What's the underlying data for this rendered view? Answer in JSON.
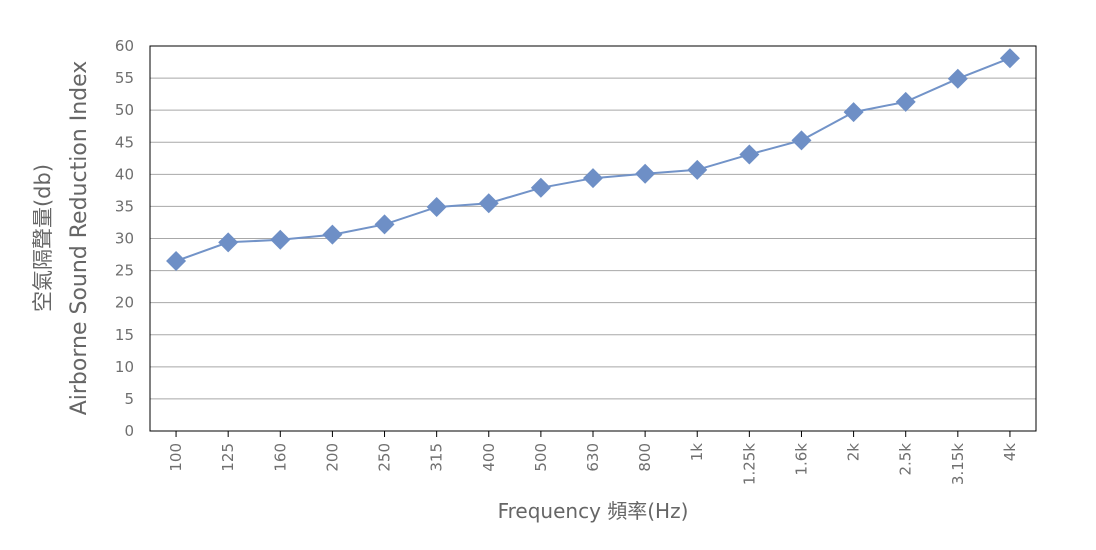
{
  "chart_data": {
    "type": "line",
    "title": "",
    "xlabel": "Frequency 頻率(Hz)",
    "ylabel_lines": [
      "空氣隔聲量(db)",
      "Airborne Sound Reduction Index"
    ],
    "categories": [
      "100",
      "125",
      "160",
      "200",
      "250",
      "315",
      "400",
      "500",
      "630",
      "800",
      "1k",
      "1.25k",
      "1.6k",
      "2k",
      "2.5k",
      "3.15k",
      "4k"
    ],
    "series": [
      {
        "values": [
          26.5,
          29.4,
          29.8,
          30.6,
          32.2,
          34.9,
          35.5,
          37.9,
          39.4,
          40.1,
          40.7,
          43.1,
          45.3,
          49.7,
          51.3,
          54.9,
          58.1
        ]
      }
    ],
    "yticks": [
      "0",
      "5",
      "10",
      "15",
      "20",
      "25",
      "30",
      "35",
      "40",
      "45",
      "50",
      "55",
      "60"
    ],
    "ylim": [
      0,
      60
    ],
    "grid": true,
    "legend": "none",
    "colors": {
      "series": "#7293c8",
      "marker": "#6e8fc6",
      "grid": "#a8a8a8",
      "axis": "#000000",
      "text": "#6f6f6f"
    }
  }
}
